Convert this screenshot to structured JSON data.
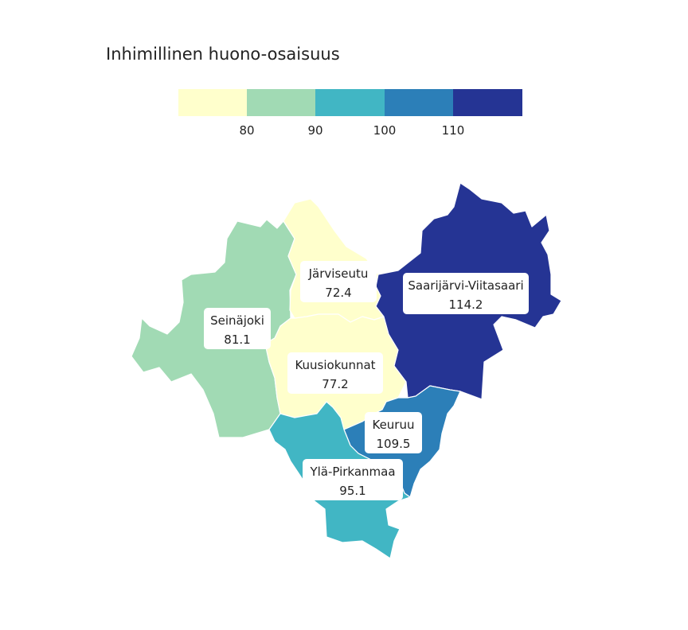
{
  "title": "Inhimillinen huono-osaisuus",
  "legend": {
    "bins": [
      {
        "color": "#ffffcc"
      },
      {
        "color": "#a1dab4"
      },
      {
        "color": "#41b6c4"
      },
      {
        "color": "#2c7fb8"
      },
      {
        "color": "#253494"
      }
    ],
    "ticks": [
      "80",
      "90",
      "100",
      "110"
    ]
  },
  "regions": [
    {
      "name": "Järviseutu",
      "value": "72.4",
      "color": "#ffffcc"
    },
    {
      "name": "Seinäjoki",
      "value": "81.1",
      "color": "#a1dab4"
    },
    {
      "name": "Kuusiokunnat",
      "value": "77.2",
      "color": "#ffffcc"
    },
    {
      "name": "Saarijärvi-Viitasaari",
      "value": "114.2",
      "color": "#253494"
    },
    {
      "name": "Keuruu",
      "value": "109.5",
      "color": "#2c7fb8"
    },
    {
      "name": "Ylä-Pirkanmaa",
      "value": "95.1",
      "color": "#41b6c4"
    }
  ]
}
